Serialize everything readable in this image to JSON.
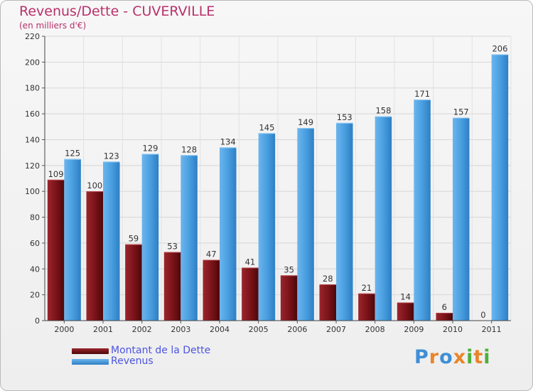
{
  "chart_data": {
    "type": "bar",
    "title": "Revenus/Dette - CUVERVILLE",
    "subtitle": "(en milliers d'€)",
    "categories": [
      "2000",
      "2001",
      "2002",
      "2003",
      "2004",
      "2005",
      "2006",
      "2007",
      "2008",
      "2009",
      "2010",
      "2011"
    ],
    "series": [
      {
        "name": "Montant de la Dette",
        "values": [
          109,
          100,
          59,
          53,
          47,
          41,
          35,
          28,
          21,
          14,
          6,
          0
        ],
        "color": "#7a1218"
      },
      {
        "name": "Revenus",
        "values": [
          125,
          123,
          129,
          128,
          134,
          145,
          149,
          153,
          158,
          171,
          157,
          206
        ],
        "color": "#4a9fe0"
      }
    ],
    "ylim": [
      0,
      220
    ],
    "yticks": [
      0,
      20,
      40,
      60,
      80,
      100,
      120,
      140,
      160,
      180,
      200,
      220
    ],
    "grid": true,
    "legend": "bottom-left"
  },
  "logo": {
    "letters": [
      {
        "ch": "P",
        "color": "#3d8fd6"
      },
      {
        "ch": "r",
        "color": "#e8862a"
      },
      {
        "ch": "o",
        "color": "#3d8fd6"
      },
      {
        "ch": "x",
        "color": "#e8862a"
      },
      {
        "ch": "i",
        "color": "#4caf3a"
      },
      {
        "ch": "t",
        "color": "#e8862a"
      },
      {
        "ch": "i",
        "color": "#4caf3a"
      }
    ]
  }
}
